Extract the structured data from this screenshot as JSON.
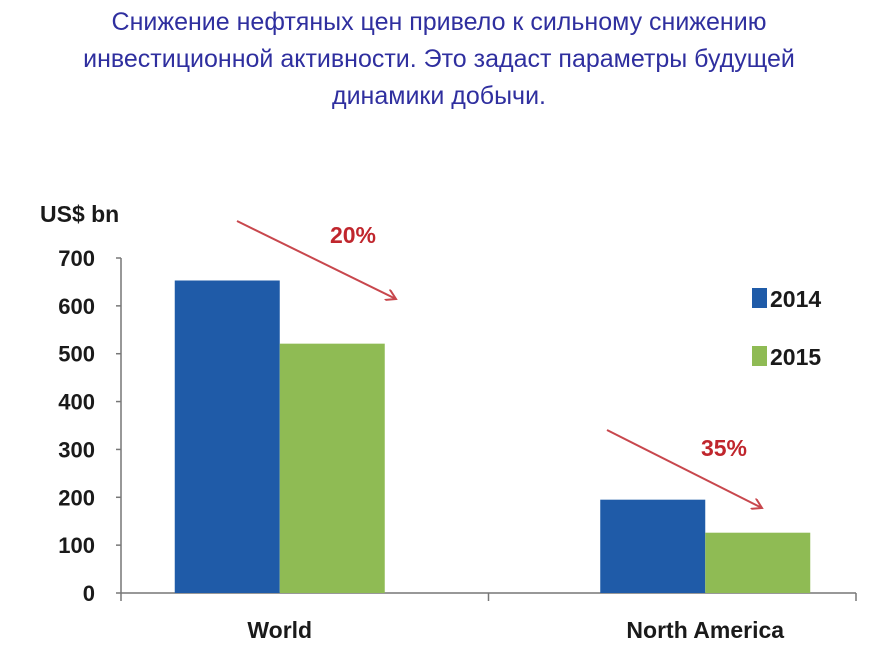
{
  "title_lines": [
    "Снижение нефтяных цен привело к сильному снижению",
    "инвестиционной активности. Это задаст параметры будущей",
    "динамики добычи."
  ],
  "chart_data": {
    "type": "bar",
    "ylabel": "US$ bn",
    "categories": [
      "World",
      "North America"
    ],
    "series": [
      {
        "name": "2014",
        "color": "#1f5ba8",
        "values": [
          653,
          195
        ]
      },
      {
        "name": "2015",
        "color": "#8fbb54",
        "values": [
          521,
          126
        ]
      }
    ],
    "ylim": [
      0,
      700
    ],
    "yticks": [
      0,
      100,
      200,
      300,
      400,
      500,
      600,
      700
    ],
    "grid": false,
    "legend": "right",
    "annotations": [
      {
        "text": "20%",
        "category": "World",
        "color": "#c0262d"
      },
      {
        "text": "35%",
        "category": "North America",
        "color": "#c0262d"
      }
    ]
  }
}
